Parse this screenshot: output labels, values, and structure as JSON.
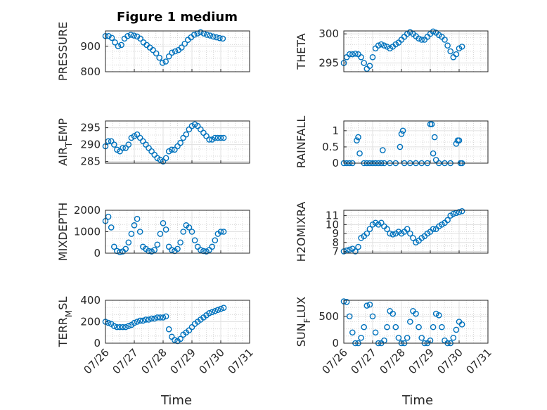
{
  "figure": {
    "title": "Figure 1 medium",
    "marker_color": "#0072BD"
  },
  "chart_data": [
    {
      "type": "scatter",
      "ylabel": "PRESSURE",
      "ylabel_sub": null,
      "ylim": [
        800,
        960
      ],
      "yticks": [
        800,
        900
      ],
      "x": [
        0.0,
        0.11,
        0.22,
        0.33,
        0.44,
        0.55,
        0.66,
        0.77,
        0.88,
        0.99,
        1.1,
        1.21,
        1.32,
        1.43,
        1.54,
        1.65,
        1.76,
        1.87,
        1.98,
        2.09,
        2.2,
        2.31,
        2.42,
        2.53,
        2.64,
        2.75,
        2.86,
        2.97,
        3.08,
        3.19,
        3.3,
        3.41,
        3.52,
        3.63,
        3.74,
        3.85,
        3.96,
        4.07
      ],
      "y": [
        940,
        940,
        933,
        915,
        900,
        905,
        930,
        940,
        945,
        942,
        938,
        930,
        915,
        905,
        895,
        885,
        872,
        855,
        835,
        840,
        860,
        875,
        880,
        885,
        895,
        910,
        925,
        935,
        945,
        950,
        955,
        950,
        945,
        942,
        938,
        935,
        932,
        930
      ]
    },
    {
      "type": "scatter",
      "ylabel": "THETA",
      "ylabel_sub": null,
      "ylim": [
        293.5,
        300.5
      ],
      "yticks": [
        295,
        300
      ],
      "x": [
        0.0,
        0.1,
        0.2,
        0.3,
        0.4,
        0.5,
        0.6,
        0.7,
        0.8,
        0.9,
        1.0,
        1.1,
        1.2,
        1.3,
        1.4,
        1.5,
        1.6,
        1.7,
        1.8,
        1.9,
        2.0,
        2.1,
        2.2,
        2.3,
        2.4,
        2.5,
        2.6,
        2.7,
        2.8,
        2.9,
        3.0,
        3.1,
        3.2,
        3.3,
        3.4,
        3.5,
        3.6,
        3.7,
        3.8,
        3.9,
        4.0,
        4.1
      ],
      "y": [
        295,
        296,
        296.5,
        296.5,
        296.6,
        296.5,
        296.0,
        295.0,
        294.0,
        294.5,
        296.0,
        297.5,
        298.0,
        298.2,
        298.0,
        297.8,
        297.5,
        297.8,
        298.2,
        298.5,
        299.0,
        299.5,
        300.0,
        300.3,
        300.0,
        299.6,
        299.2,
        299.0,
        299.0,
        299.5,
        300.0,
        300.4,
        300.2,
        299.8,
        299.5,
        299.0,
        298.0,
        297.0,
        296.0,
        296.5,
        297.5,
        297.8
      ]
    },
    {
      "type": "scatter",
      "ylabel": "AIR",
      "ylabel_sub": "T",
      "ylabel_rest": "EMP",
      "ylim": [
        284.5,
        297
      ],
      "yticks": [
        285,
        290,
        295
      ],
      "x": [
        0.0,
        0.1,
        0.2,
        0.3,
        0.4,
        0.5,
        0.6,
        0.7,
        0.8,
        0.9,
        1.0,
        1.1,
        1.2,
        1.3,
        1.4,
        1.5,
        1.6,
        1.7,
        1.8,
        1.9,
        2.0,
        2.1,
        2.2,
        2.3,
        2.4,
        2.5,
        2.6,
        2.7,
        2.8,
        2.9,
        3.0,
        3.1,
        3.2,
        3.3,
        3.4,
        3.5,
        3.6,
        3.7,
        3.8,
        3.9,
        4.0,
        4.1
      ],
      "y": [
        289.5,
        291,
        291,
        290,
        288.5,
        288,
        289,
        289,
        290,
        292,
        292.5,
        293,
        292,
        291,
        290,
        289,
        288,
        287,
        286,
        285.5,
        285,
        286,
        288,
        288.5,
        288.5,
        289.5,
        290.5,
        292,
        293,
        294.5,
        295.5,
        296,
        295.5,
        294.5,
        293.5,
        292.5,
        291.5,
        291.5,
        292,
        292,
        292,
        292
      ]
    },
    {
      "type": "scatter",
      "ylabel": "RAINFALL",
      "ylabel_sub": null,
      "ylim": [
        0,
        1.3
      ],
      "yticks": [
        0,
        0.5,
        1
      ],
      "x": [
        0.0,
        0.1,
        0.2,
        0.3,
        0.45,
        0.5,
        0.55,
        0.7,
        0.8,
        0.9,
        1.0,
        1.1,
        1.2,
        1.3,
        1.35,
        1.4,
        1.6,
        1.8,
        1.95,
        2.0,
        2.05,
        2.1,
        2.3,
        2.5,
        2.7,
        2.9,
        3.0,
        3.05,
        3.1,
        3.15,
        3.2,
        3.3,
        3.5,
        3.7,
        3.9,
        3.95,
        4.0,
        4.05,
        4.1
      ],
      "y": [
        0,
        0,
        0,
        0,
        0.7,
        0.8,
        0.3,
        0,
        0,
        0,
        0,
        0,
        0,
        0,
        0.4,
        0,
        0,
        0,
        0.5,
        0.9,
        1.0,
        0,
        0,
        0,
        0,
        0,
        1.2,
        1.2,
        0.3,
        0.8,
        0.1,
        0,
        0,
        0,
        0.6,
        0.7,
        0.7,
        0,
        0
      ]
    },
    {
      "type": "scatter",
      "ylabel": "MIXDEPTH",
      "ylabel_sub": null,
      "ylim": [
        0,
        2000
      ],
      "yticks": [
        0,
        1000,
        2000
      ],
      "x": [
        0.0,
        0.1,
        0.2,
        0.3,
        0.4,
        0.5,
        0.6,
        0.7,
        0.8,
        0.9,
        1.0,
        1.1,
        1.2,
        1.3,
        1.4,
        1.5,
        1.6,
        1.7,
        1.8,
        1.9,
        2.0,
        2.1,
        2.2,
        2.3,
        2.4,
        2.5,
        2.6,
        2.7,
        2.8,
        2.9,
        3.0,
        3.1,
        3.2,
        3.3,
        3.4,
        3.5,
        3.6,
        3.7,
        3.8,
        3.9,
        4.0,
        4.1
      ],
      "y": [
        1500,
        1700,
        1200,
        300,
        100,
        50,
        80,
        200,
        500,
        900,
        1300,
        1600,
        1000,
        300,
        200,
        100,
        80,
        150,
        400,
        900,
        1400,
        1100,
        300,
        150,
        100,
        200,
        500,
        1000,
        1300,
        1200,
        1000,
        600,
        300,
        150,
        100,
        80,
        150,
        300,
        600,
        900,
        1000,
        1000
      ]
    },
    {
      "type": "scatter",
      "ylabel": "H2OMIXRA",
      "ylabel_sub": null,
      "ylim": [
        6.8,
        11.6
      ],
      "yticks": [
        7,
        8,
        9,
        10,
        11
      ],
      "x": [
        0.0,
        0.1,
        0.2,
        0.3,
        0.4,
        0.5,
        0.6,
        0.7,
        0.8,
        0.9,
        1.0,
        1.1,
        1.2,
        1.3,
        1.4,
        1.5,
        1.6,
        1.7,
        1.8,
        1.9,
        2.0,
        2.1,
        2.2,
        2.3,
        2.4,
        2.5,
        2.6,
        2.7,
        2.8,
        2.9,
        3.0,
        3.1,
        3.2,
        3.3,
        3.4,
        3.5,
        3.6,
        3.7,
        3.8,
        3.9,
        4.0,
        4.1
      ],
      "y": [
        7,
        7.1,
        7.2,
        7.3,
        7.0,
        7.5,
        8.5,
        8.7,
        9.0,
        9.5,
        10.0,
        10.2,
        10.0,
        10.2,
        9.8,
        9.5,
        9.0,
        8.9,
        9.0,
        9.2,
        9.0,
        9.2,
        9.5,
        9.0,
        8.5,
        8.0,
        8.2,
        8.5,
        8.7,
        9.0,
        9.2,
        9.5,
        9.5,
        9.8,
        10.0,
        10.2,
        10.5,
        11.0,
        11.2,
        11.3,
        11.4,
        11.5
      ]
    },
    {
      "type": "scatter",
      "ylabel": "TERR",
      "ylabel_sub": "M",
      "ylabel_rest": "SL",
      "ylim": [
        0,
        400
      ],
      "yticks": [
        0,
        200,
        400
      ],
      "x": [
        0.0,
        0.1,
        0.2,
        0.3,
        0.4,
        0.5,
        0.6,
        0.7,
        0.8,
        0.9,
        1.0,
        1.1,
        1.2,
        1.3,
        1.4,
        1.5,
        1.6,
        1.7,
        1.8,
        1.9,
        2.0,
        2.1,
        2.2,
        2.3,
        2.4,
        2.5,
        2.6,
        2.7,
        2.8,
        2.9,
        3.0,
        3.1,
        3.2,
        3.3,
        3.4,
        3.5,
        3.6,
        3.7,
        3.8,
        3.9,
        4.0,
        4.1
      ],
      "y": [
        200,
        190,
        180,
        160,
        150,
        150,
        150,
        150,
        160,
        170,
        190,
        200,
        210,
        210,
        220,
        220,
        230,
        230,
        240,
        240,
        240,
        250,
        130,
        60,
        30,
        20,
        40,
        80,
        100,
        120,
        150,
        180,
        200,
        220,
        240,
        260,
        280,
        290,
        300,
        310,
        320,
        330
      ]
    },
    {
      "type": "scatter",
      "ylabel": "SUN",
      "ylabel_sub": "F",
      "ylabel_rest": "LUX",
      "ylim": [
        0,
        800
      ],
      "yticks": [
        0,
        500
      ],
      "x": [
        0.0,
        0.1,
        0.2,
        0.3,
        0.4,
        0.5,
        0.6,
        0.7,
        0.8,
        0.9,
        1.0,
        1.1,
        1.2,
        1.3,
        1.4,
        1.5,
        1.6,
        1.7,
        1.8,
        1.9,
        2.0,
        2.1,
        2.2,
        2.3,
        2.4,
        2.5,
        2.6,
        2.7,
        2.8,
        2.9,
        3.0,
        3.1,
        3.2,
        3.3,
        3.4,
        3.5,
        3.6,
        3.7,
        3.8,
        3.9,
        4.0,
        4.1
      ],
      "y": [
        780,
        770,
        500,
        200,
        0,
        0,
        100,
        300,
        700,
        720,
        500,
        200,
        0,
        0,
        50,
        300,
        600,
        550,
        300,
        100,
        0,
        0,
        100,
        400,
        600,
        550,
        300,
        100,
        0,
        0,
        50,
        300,
        550,
        520,
        300,
        50,
        0,
        0,
        100,
        250,
        400,
        350
      ]
    }
  ],
  "x_axis": {
    "label": "Time",
    "ticks": [
      "07/26",
      "07/27",
      "07/28",
      "07/29",
      "07/30",
      "07/31"
    ]
  }
}
